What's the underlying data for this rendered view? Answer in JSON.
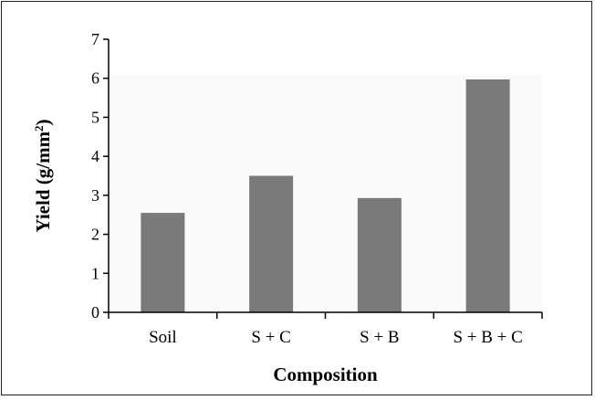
{
  "chart_data": {
    "type": "bar",
    "categories": [
      "Soil",
      "S + C",
      "S + B",
      "S + B + C"
    ],
    "values": [
      2.55,
      3.5,
      2.93,
      5.97
    ],
    "xlabel": "Composition",
    "ylabel_main": "Yield (g/mm",
    "ylabel_sup": "2",
    "ylabel_close": ")",
    "ylim": [
      0,
      7
    ],
    "yticks": [
      "0",
      "1",
      "2",
      "3",
      "4",
      "5",
      "6",
      "7"
    ],
    "grid": false,
    "legend": "none",
    "colors": {
      "bar": "#7a7a7a",
      "plot_bg": "#fafafa",
      "axis": "#000000"
    }
  }
}
